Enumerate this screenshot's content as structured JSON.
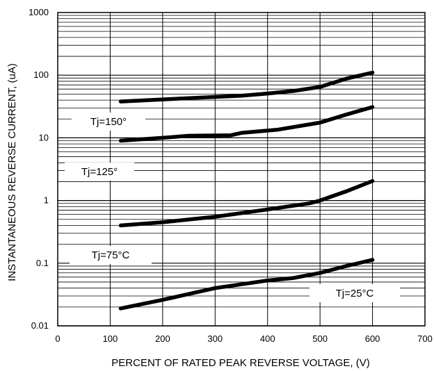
{
  "chart_data": {
    "type": "line",
    "title": "",
    "xlabel": "PERCENT OF RATED PEAK REVERSE VOLTAGE, (V)",
    "ylabel": "INSTANTANEOUS REVERSE CURRENT, (uA)",
    "x_scale": "linear",
    "y_scale": "log",
    "xlim": [
      0,
      700
    ],
    "ylim": [
      0.01,
      1000
    ],
    "x_ticks": [
      0,
      100,
      200,
      300,
      400,
      500,
      600,
      700
    ],
    "x_tick_labels": [
      "0",
      "100",
      "200",
      "300",
      "400",
      "500",
      "600",
      "700"
    ],
    "y_ticks": [
      0.01,
      0.1,
      1,
      10,
      100,
      1000
    ],
    "y_tick_labels": [
      "0.01",
      "0.1",
      "1",
      "10",
      "100",
      "1000"
    ],
    "grid": true,
    "series": [
      {
        "name": "Tj=150°",
        "line_color": "#000000",
        "x": [
          120,
          200,
          300,
          350,
          400,
          450,
          500,
          550,
          600
        ],
        "y": [
          38,
          41,
          45,
          47,
          51,
          56,
          65,
          88,
          110
        ]
      },
      {
        "name": "Tj=125°",
        "line_color": "#000000",
        "x": [
          120,
          200,
          250,
          330,
          350,
          420,
          500,
          550,
          600
        ],
        "y": [
          9,
          10,
          10.8,
          11,
          12,
          13.5,
          17.5,
          23.5,
          31
        ]
      },
      {
        "name": "Tj=75°C",
        "line_color": "#000000",
        "x": [
          120,
          200,
          300,
          400,
          480,
          500,
          550,
          600
        ],
        "y": [
          0.4,
          0.45,
          0.55,
          0.72,
          0.9,
          1.0,
          1.4,
          2.05
        ]
      },
      {
        "name": "Tj=25°C",
        "line_color": "#000000",
        "x": [
          120,
          200,
          300,
          400,
          450,
          500,
          550,
          600
        ],
        "y": [
          0.019,
          0.026,
          0.04,
          0.053,
          0.058,
          0.07,
          0.09,
          0.113
        ]
      }
    ]
  }
}
